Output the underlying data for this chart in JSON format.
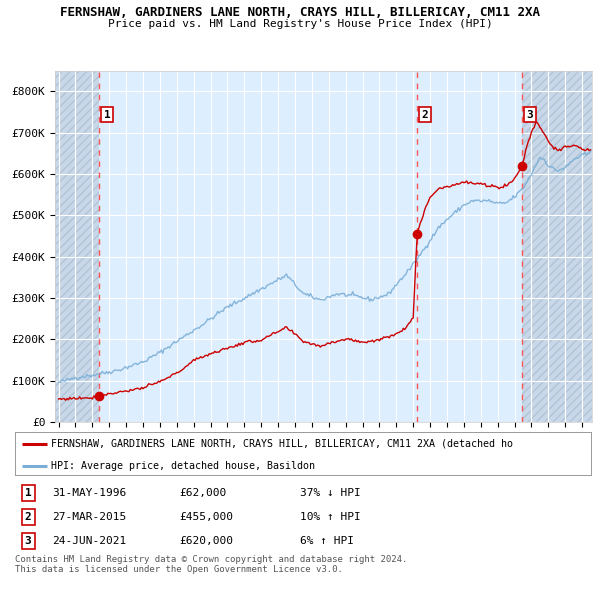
{
  "title_line1": "FERNSHAW, GARDINERS LANE NORTH, CRAYS HILL, BILLERICAY, CM11 2XA",
  "title_line2": "Price paid vs. HM Land Registry's House Price Index (HPI)",
  "sale_prices": [
    62000,
    455000,
    620000
  ],
  "sale_labels": [
    "1",
    "2",
    "3"
  ],
  "sale_years": [
    1996.42,
    2015.23,
    2021.47
  ],
  "legend_red": "FERNSHAW, GARDINERS LANE NORTH, CRAYS HILL, BILLERICAY, CM11 2XA (detached ho",
  "legend_blue": "HPI: Average price, detached house, Basildon",
  "table_rows": [
    [
      "1",
      "31-MAY-1996",
      "£62,000",
      "37% ↓ HPI"
    ],
    [
      "2",
      "27-MAR-2015",
      "£455,000",
      "10% ↑ HPI"
    ],
    [
      "3",
      "24-JUN-2021",
      "£620,000",
      "6% ↑ HPI"
    ]
  ],
  "footer": "Contains HM Land Registry data © Crown copyright and database right 2024.\nThis data is licensed under the Open Government Licence v3.0.",
  "red_color": "#cc0000",
  "blue_color": "#7aaed6",
  "plot_bg": "#ddeeff",
  "hatch_bg": "#c8d8e8",
  "grid_color": "#ffffff",
  "dashed_line_color": "#ff5555",
  "ylim": [
    0,
    850000
  ],
  "yticks": [
    0,
    100000,
    200000,
    300000,
    400000,
    500000,
    600000,
    700000,
    800000
  ],
  "ytick_labels": [
    "£0",
    "£100K",
    "£200K",
    "£300K",
    "£400K",
    "£500K",
    "£600K",
    "£700K",
    "£800K"
  ],
  "xlim_start": 1993.8,
  "xlim_end": 2025.6
}
